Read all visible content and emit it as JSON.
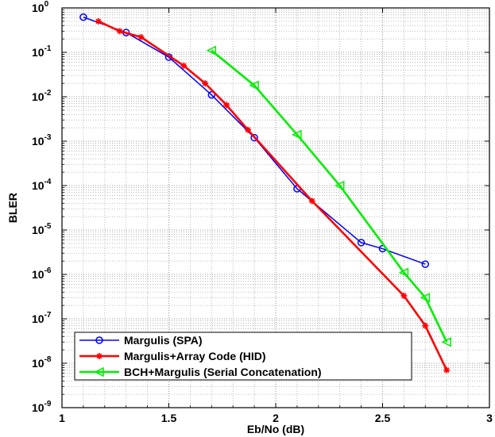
{
  "chart_data": {
    "type": "line",
    "title": "",
    "xlabel": "Eb/No (dB)",
    "ylabel": "BLER",
    "xlim": [
      1,
      3
    ],
    "ylim": [
      1e-09,
      1
    ],
    "yscale": "log",
    "grid": true,
    "legend_position": "bottom-left",
    "x_ticks": [
      "1",
      "1.5",
      "2",
      "2.5",
      "3"
    ],
    "y_ticks": [
      {
        "base": "10",
        "exp": "0"
      },
      {
        "base": "10",
        "exp": "-1"
      },
      {
        "base": "10",
        "exp": "-2"
      },
      {
        "base": "10",
        "exp": "-3"
      },
      {
        "base": "10",
        "exp": "-4"
      },
      {
        "base": "10",
        "exp": "-5"
      },
      {
        "base": "10",
        "exp": "-6"
      },
      {
        "base": "10",
        "exp": "-7"
      },
      {
        "base": "10",
        "exp": "-8"
      },
      {
        "base": "10",
        "exp": "-9"
      }
    ],
    "series": [
      {
        "name": "Margulis (SPA)",
        "color": "#0000ff",
        "marker": "circle",
        "x": [
          1.1,
          1.3,
          1.5,
          1.7,
          1.9,
          2.1,
          2.4,
          2.5,
          2.7
        ],
        "y": [
          0.62,
          0.28,
          0.078,
          0.011,
          0.0012,
          8.5e-05,
          5.2e-06,
          3.8e-06,
          1.7e-06
        ]
      },
      {
        "name": "Margulis+Array Code (HID)",
        "color": "#ff0000",
        "marker": "star",
        "x": [
          1.17,
          1.27,
          1.37,
          1.57,
          1.67,
          1.77,
          1.87,
          2.17,
          2.6,
          2.7,
          2.8
        ],
        "y": [
          0.5,
          0.3,
          0.22,
          0.05,
          0.02,
          0.0065,
          0.0018,
          4.5e-05,
          3.3e-07,
          7e-08,
          7e-09
        ]
      },
      {
        "name": "BCH+Margulis (Serial Concatenation)",
        "color": "#00ee00",
        "marker": "triangle-left",
        "x": [
          1.7,
          1.9,
          2.1,
          2.3,
          2.6,
          2.7,
          2.8
        ],
        "y": [
          0.11,
          0.018,
          0.0014,
          0.0001,
          1.1e-06,
          3e-07,
          3e-08
        ]
      }
    ]
  }
}
